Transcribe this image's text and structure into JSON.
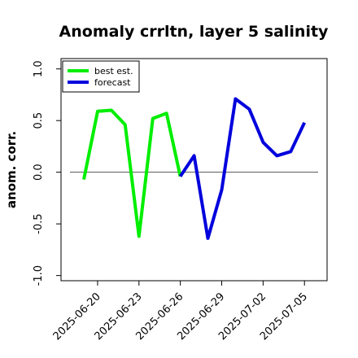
{
  "chart_data": {
    "type": "line",
    "title": "Anomaly crrltn, layer 5 salinity",
    "ylabel": "anom. corr.",
    "xlabel": "",
    "ylim": [
      -1.05,
      1.1
    ],
    "yticks": [
      "-1.0",
      "-0.5",
      "0.0",
      "0.5",
      "1.0"
    ],
    "ytick_values": [
      -1.0,
      -0.5,
      0.0,
      0.5,
      1.0
    ],
    "xtick_labels": [
      "2025-06-20",
      "2025-06-23",
      "2025-06-26",
      "2025-06-29",
      "2025-07-02",
      "2025-07-05"
    ],
    "highlight_tick": "2025-06-26",
    "highlight_color": "#228b22",
    "x_start": "2025-06-19",
    "zero_line": true,
    "grid": false,
    "legend_position": "top-left",
    "series": [
      {
        "name": "best est.",
        "color": "#00ee00",
        "x": [
          "2025-06-19",
          "2025-06-20",
          "2025-06-21",
          "2025-06-22",
          "2025-06-23",
          "2025-06-24",
          "2025-06-25",
          "2025-06-26"
        ],
        "values": [
          -0.07,
          0.59,
          0.6,
          0.46,
          -0.62,
          0.52,
          0.57,
          -0.04
        ]
      },
      {
        "name": "forecast",
        "color": "#0000dd",
        "x": [
          "2025-06-26",
          "2025-06-27",
          "2025-06-28",
          "2025-06-29",
          "2025-06-30",
          "2025-07-01",
          "2025-07-02",
          "2025-07-03",
          "2025-07-04",
          "2025-07-05"
        ],
        "values": [
          -0.04,
          0.16,
          -0.64,
          -0.17,
          0.71,
          0.61,
          0.29,
          0.16,
          0.2,
          0.48
        ]
      }
    ]
  }
}
